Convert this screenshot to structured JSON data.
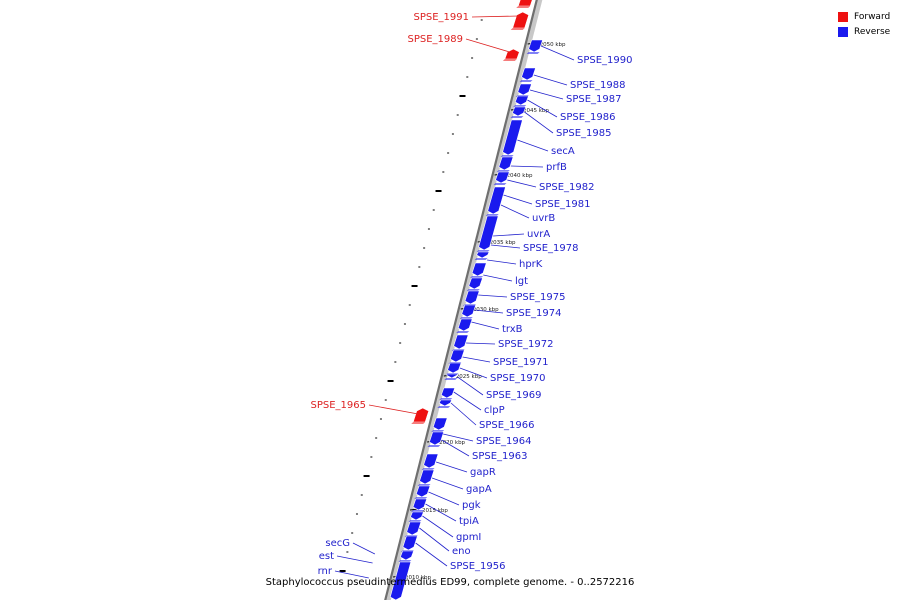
{
  "colors": {
    "forward": "#ee1111",
    "reverse": "#1a1aee",
    "forward_label": "#dd2222",
    "reverse_label": "#2222cc",
    "backbone_outer": "#6f6f6f",
    "backbone_inner": "#c8c8c8"
  },
  "legend": {
    "forward_label": "Forward",
    "reverse_label": "Reverse"
  },
  "caption": "Staphylococcus pseudintermedius ED99, complete genome. - 0..2572216",
  "scale_ticks": [
    "2050 kbp",
    "2045 kbp",
    "2040 kbp",
    "2035 kbp",
    "2030 kbp",
    "2025 kbp",
    "2020 kbp",
    "2015 kbp",
    "2010 kbp"
  ],
  "forward_genes": [
    "SPSE_1991",
    "SPSE_1989",
    "SPSE_1965"
  ],
  "reverse_genes": [
    "SPSE_1990",
    "SPSE_1988",
    "SPSE_1987",
    "SPSE_1986",
    "SPSE_1985",
    "secA",
    "prfB",
    "SPSE_1982",
    "SPSE_1981",
    "uvrB",
    "uvrA",
    "SPSE_1978",
    "hprK",
    "lgt",
    "SPSE_1975",
    "SPSE_1974",
    "trxB",
    "SPSE_1972",
    "SPSE_1971",
    "SPSE_1970",
    "SPSE_1969",
    "clpP",
    "SPSE_1966",
    "SPSE_1964",
    "SPSE_1963",
    "gapR",
    "gapA",
    "pgk",
    "tpiA",
    "gpmI",
    "eno",
    "SPSE_1956"
  ],
  "left_reverse_genes": [
    "secG",
    "est",
    "rnr"
  ]
}
